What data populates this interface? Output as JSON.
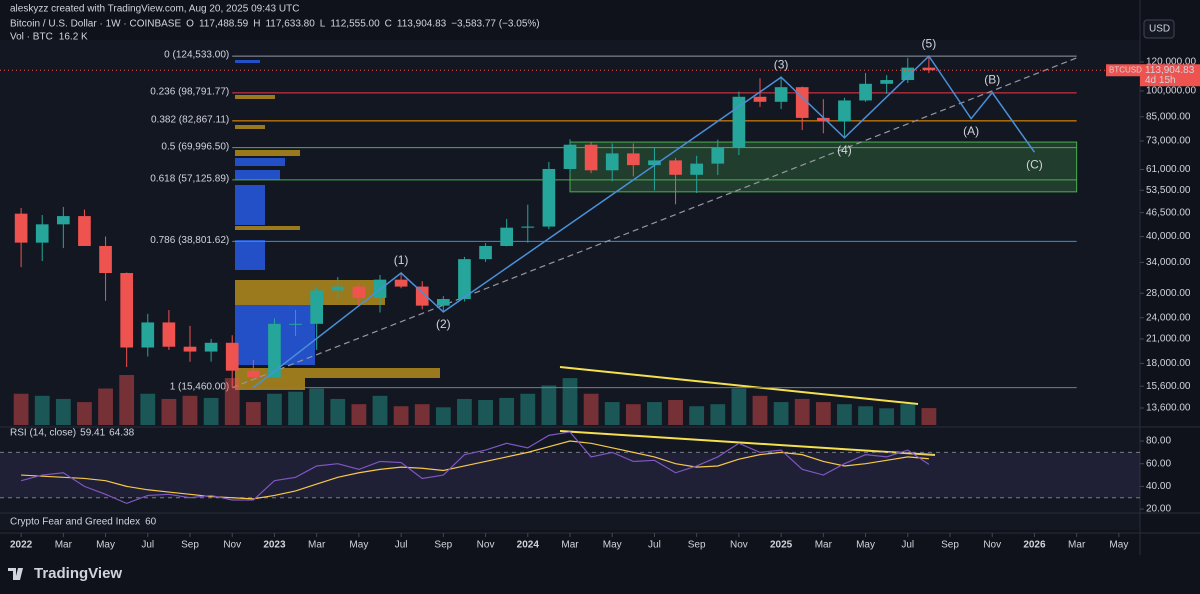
{
  "header": {
    "credit": "aleskyzz created with TradingView.com, Aug 20, 2025 09:43 UTC",
    "symbol": "Bitcoin / U.S. Dollar · 1W · COINBASE",
    "ohlc": [
      {
        "label": "O",
        "value": "117,488.59"
      },
      {
        "label": "H",
        "value": "117,633.80"
      },
      {
        "label": "L",
        "value": "112,555.00"
      },
      {
        "label": "C",
        "value": "113,904.83"
      }
    ],
    "change": "−3,583.77 (−3.05%)",
    "currency": "USD"
  },
  "footer": {
    "brand": "TradingView"
  },
  "chart_data": {
    "type": "candlestick",
    "log_scale": true,
    "up_color": "#26a69a",
    "down_color": "#ef5350",
    "x": [
      "2022-01",
      "2022-02",
      "2022-03",
      "2022-04",
      "2022-05",
      "2022-06",
      "2022-07",
      "2022-08",
      "2022-09",
      "2022-10",
      "2022-11",
      "2022-12",
      "2023-01",
      "2023-02",
      "2023-03",
      "2023-04",
      "2023-05",
      "2023-06",
      "2023-07",
      "2023-08",
      "2023-09",
      "2023-10",
      "2023-11",
      "2023-12",
      "2024-01",
      "2024-02",
      "2024-03",
      "2024-04",
      "2024-05",
      "2024-06",
      "2024-07",
      "2024-08",
      "2024-09",
      "2024-10",
      "2024-11",
      "2024-12",
      "2025-01",
      "2025-02",
      "2025-03",
      "2025-04",
      "2025-05",
      "2025-06",
      "2025-07",
      "2025-08"
    ],
    "open": [
      46200,
      38500,
      43200,
      45500,
      37700,
      31800,
      19900,
      23300,
      20000,
      19400,
      20500,
      17200,
      16500,
      23100,
      23100,
      28500,
      29200,
      27200,
      30500,
      29200,
      25900,
      27000,
      34700,
      37700,
      42300,
      42600,
      61200,
      71300,
      60700,
      67500,
      62700,
      64600,
      59000,
      63300,
      70200,
      96400,
      93400,
      102400,
      84400,
      82500,
      94200,
      104600,
      107100,
      115800
    ],
    "high": [
      47900,
      45800,
      48200,
      47400,
      40000,
      31900,
      24600,
      25200,
      22800,
      21000,
      21500,
      18400,
      23900,
      25200,
      29200,
      31000,
      29800,
      31400,
      31800,
      30200,
      27500,
      35200,
      38400,
      44700,
      48900,
      64000,
      73800,
      72700,
      71900,
      71900,
      70000,
      65600,
      66500,
      73600,
      99600,
      108300,
      109600,
      102800,
      95000,
      95800,
      112000,
      110500,
      123200,
      124533
    ],
    "low": [
      33000,
      34300,
      37200,
      37700,
      26700,
      17600,
      18800,
      19600,
      18200,
      18200,
      15500,
      16300,
      16500,
      21400,
      19600,
      26900,
      25800,
      24800,
      28900,
      25300,
      24900,
      26600,
      34100,
      37600,
      38500,
      41900,
      59100,
      59600,
      56600,
      58400,
      53500,
      49000,
      52600,
      58900,
      66800,
      90500,
      89200,
      78200,
      76600,
      74400,
      93400,
      98200,
      105100,
      111900
    ],
    "close": [
      38500,
      43200,
      45500,
      37700,
      31800,
      19900,
      23300,
      20000,
      19400,
      20500,
      17200,
      16500,
      23100,
      23100,
      28500,
      29200,
      27200,
      30500,
      29200,
      25900,
      27000,
      34700,
      37700,
      42300,
      42600,
      61200,
      71300,
      60700,
      67500,
      62700,
      64600,
      59000,
      63300,
      70200,
      96400,
      93400,
      102400,
      84400,
      82500,
      94200,
      104600,
      107100,
      115800,
      113904.83
    ],
    "volume": {
      "name": "Vol · BTC",
      "label": "16.2 K",
      "values": [
        30,
        28,
        25,
        22,
        35,
        48,
        30,
        25,
        28,
        26,
        45,
        22,
        30,
        32,
        35,
        25,
        20,
        28,
        18,
        20,
        17,
        25,
        24,
        26,
        30,
        38,
        45,
        30,
        22,
        20,
        22,
        24,
        18,
        20,
        35,
        28,
        22,
        25,
        22,
        20,
        18,
        16,
        20,
        16.2
      ]
    },
    "ylim": [
      12220,
      137800
    ],
    "yticks": [
      {
        "value": 120000,
        "label": "120,000.00"
      },
      {
        "value": 100000,
        "label": "100,000.00"
      },
      {
        "value": 85000,
        "label": "85,000.00"
      },
      {
        "value": 73000,
        "label": "73,000.00"
      },
      {
        "value": 61000,
        "label": "61,000.00"
      },
      {
        "value": 53500,
        "label": "53,500.00"
      },
      {
        "value": 46500,
        "label": "46,500.00"
      },
      {
        "value": 40000,
        "label": "40,000.00"
      },
      {
        "value": 34000,
        "label": "34,000.00"
      },
      {
        "value": 28000,
        "label": "28,000.00"
      },
      {
        "value": 24000,
        "label": "24,000.00"
      },
      {
        "value": 21000,
        "label": "21,000.00"
      },
      {
        "value": 18000,
        "label": "18,000.00"
      },
      {
        "value": 15600,
        "label": "15,600.00"
      },
      {
        "value": 13600,
        "label": "13,600.00"
      }
    ],
    "xlim": [
      "2021-12",
      "2026-06"
    ],
    "xticks": [
      {
        "value": "2022-01",
        "label": "2022"
      },
      {
        "value": "2022-03",
        "label": "Mar"
      },
      {
        "value": "2022-05",
        "label": "May"
      },
      {
        "value": "2022-07",
        "label": "Jul"
      },
      {
        "value": "2022-09",
        "label": "Sep"
      },
      {
        "value": "2022-11",
        "label": "Nov"
      },
      {
        "value": "2023-01",
        "label": "2023"
      },
      {
        "value": "2023-03",
        "label": "Mar"
      },
      {
        "value": "2023-05",
        "label": "May"
      },
      {
        "value": "2023-07",
        "label": "Jul"
      },
      {
        "value": "2023-09",
        "label": "Sep"
      },
      {
        "value": "2023-11",
        "label": "Nov"
      },
      {
        "value": "2024-01",
        "label": "2024"
      },
      {
        "value": "2024-03",
        "label": "Mar"
      },
      {
        "value": "2024-05",
        "label": "May"
      },
      {
        "value": "2024-07",
        "label": "Jul"
      },
      {
        "value": "2024-09",
        "label": "Sep"
      },
      {
        "value": "2024-11",
        "label": "Nov"
      },
      {
        "value": "2025-01",
        "label": "2025"
      },
      {
        "value": "2025-03",
        "label": "Mar"
      },
      {
        "value": "2025-05",
        "label": "May"
      },
      {
        "value": "2025-07",
        "label": "Jul"
      },
      {
        "value": "2025-09",
        "label": "Sep"
      },
      {
        "value": "2025-11",
        "label": "Nov"
      },
      {
        "value": "2026-01",
        "label": "2026"
      },
      {
        "value": "2026-03",
        "label": "Mar"
      },
      {
        "value": "2026-05",
        "label": "May"
      }
    ],
    "last_price": {
      "value": 113904.83,
      "label": "113,904.83",
      "countdown": "4d 15h",
      "symbol": "BTCUSD"
    },
    "fib": {
      "x": [
        "2022-11",
        "2026-03"
      ],
      "levels": [
        {
          "label": "0 (124,533.00)",
          "value": 124533,
          "color": "#9598a1"
        },
        {
          "label": "0.236 (98,791.77)",
          "value": 98791.77,
          "color": "#f23645"
        },
        {
          "label": "0.382 (82,867.11)",
          "value": 82867.11,
          "color": "#ff9800"
        },
        {
          "label": "0.5 (69,996.50)",
          "value": 69996.5,
          "color": "#4caf50"
        },
        {
          "label": "0.618 (57,125.89)",
          "value": 57125.89,
          "color": "#4caf50"
        },
        {
          "label": "0.786 (38,801.62)",
          "value": 38801.62,
          "color": "#2196f3"
        },
        {
          "label": "1 (15,460.00)",
          "value": 15460,
          "color": "#787b86"
        }
      ]
    },
    "zone": {
      "x": [
        "2024-03",
        "2026-03"
      ],
      "y": [
        53000,
        72500
      ],
      "color": "#4caf50"
    },
    "trendline": {
      "x": [
        "2022-11",
        "2026-03"
      ],
      "y": [
        15460,
        123100
      ]
    },
    "waves": {
      "color": "#4a90d9",
      "points": [
        {
          "x": "2022-12",
          "y": 15460,
          "label": null
        },
        {
          "x": "2023-07",
          "y": 31800,
          "label": "(1)"
        },
        {
          "x": "2023-09",
          "y": 24900,
          "label": "(2)"
        },
        {
          "x": "2025-01",
          "y": 109000,
          "label": "(3)"
        },
        {
          "x": "2025-04",
          "y": 74500,
          "label": "(4)"
        },
        {
          "x": "2025-08",
          "y": 124500,
          "label": "(5)"
        },
        {
          "x": "2025-10",
          "y": 84000,
          "label": "(A)"
        },
        {
          "x": "2025-11",
          "y": 99000,
          "label": "(B)"
        },
        {
          "x": "2026-01",
          "y": 68000,
          "label": "(C)"
        }
      ]
    },
    "rsi": {
      "title": "RSI (14, close)",
      "value_label": "59.41",
      "ma_label": "64.38",
      "color": "#7e57c2",
      "ma_color": "#f7c948",
      "values": [
        45,
        50,
        52,
        40,
        33,
        25,
        32,
        33,
        30,
        32,
        28,
        28,
        45,
        48,
        58,
        60,
        55,
        62,
        61,
        47,
        50,
        68,
        72,
        78,
        74,
        85,
        88,
        66,
        70,
        62,
        63,
        52,
        58,
        66,
        78,
        70,
        72,
        55,
        50,
        60,
        68,
        66,
        72,
        59.41
      ],
      "ma": [
        50,
        49,
        48,
        47,
        45,
        40,
        37,
        35,
        33,
        31,
        30,
        29,
        32,
        36,
        42,
        48,
        52,
        55,
        57,
        56,
        54,
        58,
        62,
        66,
        70,
        75,
        80,
        78,
        74,
        70,
        66,
        60,
        57,
        58,
        64,
        68,
        70,
        68,
        62,
        58,
        60,
        63,
        66,
        64.38
      ],
      "ylim": [
        17.4,
        91.5
      ],
      "yticks": [
        {
          "value": 80,
          "label": "80.00"
        },
        {
          "value": 60,
          "label": "60.00"
        },
        {
          "value": 40,
          "label": "40.00"
        },
        {
          "value": 20,
          "label": "20.00"
        }
      ],
      "band": [
        30,
        70
      ]
    },
    "fear_greed": {
      "title": "Crypto Fear and Greed Index",
      "value": 60
    }
  }
}
